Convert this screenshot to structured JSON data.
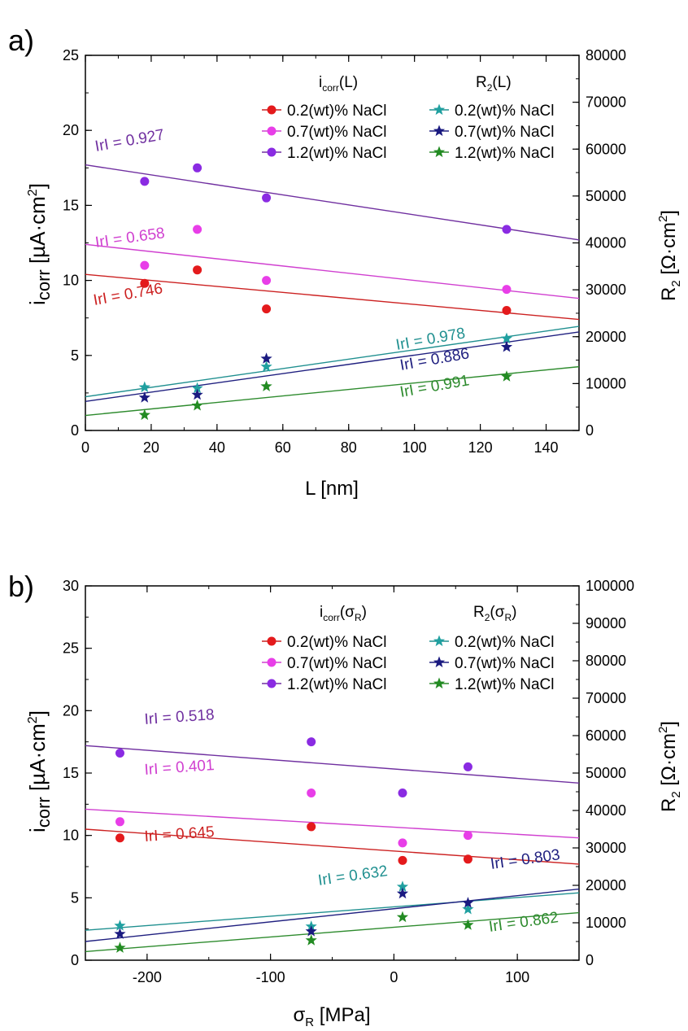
{
  "colors": {
    "red": "#e41a1c",
    "magenta": "#e83ee8",
    "violet": "#8a2be2",
    "teal": "#20a0a0",
    "navy": "#1a1a80",
    "green": "#228b22",
    "darkred": "#cc2222",
    "fitviolet": "#7030a0",
    "fitmagenta": "#d040d0",
    "fitteal": "#209090",
    "fitnavy": "#202080",
    "fitgreen": "#2e8b2e"
  },
  "chart_data": [
    {
      "type": "scatter",
      "panel_label": "a)",
      "xlabel": "L [nm]",
      "ylabel_left": "i",
      "ylabel_left_sub": "corr",
      "ylabel_left_unit": "[µA·cm",
      "ylabel_left_sup": "2",
      "ylabel_left_close": "]",
      "ylabel_right": "R",
      "ylabel_right_sub": "2",
      "ylabel_right_unit": "[Ω·cm",
      "ylabel_right_sup": "2",
      "ylabel_right_close": "]",
      "xlim": [
        0,
        150
      ],
      "ylim_left": [
        0,
        25
      ],
      "ylim_right": [
        0,
        80000
      ],
      "xticks": [
        0,
        20,
        40,
        60,
        80,
        100,
        120,
        140
      ],
      "yticks_left": [
        0,
        5,
        10,
        15,
        20,
        25
      ],
      "yticks_right": [
        0,
        10000,
        20000,
        30000,
        40000,
        50000,
        60000,
        70000,
        80000
      ],
      "legend_header_left": "i",
      "legend_header_left_sub": "corr",
      "legend_header_left_arg": "(L)",
      "legend_header_right": "R",
      "legend_header_right_sub": "2",
      "legend_header_right_arg": "(L)",
      "series": [
        {
          "name": "0.2(wt)% NaCl",
          "axis": "left",
          "marker": "circle",
          "color_key": "red",
          "x": [
            18,
            34,
            55,
            128
          ],
          "y": [
            9.8,
            10.7,
            8.1,
            8.0
          ],
          "fit": [
            10.4,
            7.4
          ],
          "r_label": "IrI = 0.746",
          "fit_color_key": "darkred"
        },
        {
          "name": "0.7(wt)% NaCl",
          "axis": "left",
          "marker": "circle",
          "color_key": "magenta",
          "x": [
            18,
            34,
            55,
            128
          ],
          "y": [
            11.0,
            13.4,
            10.0,
            9.4
          ],
          "fit": [
            12.4,
            8.8
          ],
          "r_label": "IrI = 0.658",
          "fit_color_key": "fitmagenta"
        },
        {
          "name": "1.2(wt)% NaCl",
          "axis": "left",
          "marker": "circle",
          "color_key": "violet",
          "x": [
            18,
            34,
            55,
            128
          ],
          "y": [
            16.6,
            17.5,
            15.5,
            13.4
          ],
          "fit": [
            17.7,
            12.7
          ],
          "r_label": "IrI = 0.927",
          "fit_color_key": "fitviolet"
        },
        {
          "name": "0.2(wt)% NaCl",
          "axis": "right",
          "marker": "star",
          "color_key": "teal",
          "x": [
            18,
            34,
            55,
            128
          ],
          "y": [
            9200,
            9000,
            13600,
            19600
          ],
          "fit": [
            7200,
            22200
          ],
          "r_label": "IrI = 0.978",
          "fit_color_key": "fitteal"
        },
        {
          "name": "0.7(wt)% NaCl",
          "axis": "right",
          "marker": "star",
          "color_key": "navy",
          "x": [
            18,
            34,
            55,
            128
          ],
          "y": [
            7000,
            7600,
            15300,
            17800
          ],
          "fit": [
            6200,
            21000
          ],
          "r_label": "IrI = 0.886",
          "fit_color_key": "fitnavy"
        },
        {
          "name": "1.2(wt)% NaCl",
          "axis": "right",
          "marker": "star",
          "color_key": "green",
          "x": [
            18,
            34,
            55,
            128
          ],
          "y": [
            3300,
            5300,
            9400,
            11500
          ],
          "fit": [
            3200,
            13600
          ],
          "r_label": "IrI = 0.991",
          "fit_color_key": "fitgreen"
        }
      ]
    },
    {
      "type": "scatter",
      "panel_label": "b)",
      "xlabel": "σ",
      "xlabel_sub": "R",
      "xlabel_unit": "[MPa]",
      "ylabel_left": "i",
      "ylabel_left_sub": "corr",
      "ylabel_left_unit": "[µA·cm",
      "ylabel_left_sup": "2",
      "ylabel_left_close": "]",
      "ylabel_right": "R",
      "ylabel_right_sub": "2",
      "ylabel_right_unit": "[Ω·cm",
      "ylabel_right_sup": "2",
      "ylabel_right_close": "]",
      "xlim": [
        -250,
        150
      ],
      "ylim_left": [
        0,
        30
      ],
      "ylim_right": [
        0,
        100000
      ],
      "xticks": [
        -200,
        -100,
        0,
        100
      ],
      "yticks_left": [
        0,
        5,
        10,
        15,
        20,
        25,
        30
      ],
      "yticks_right": [
        0,
        10000,
        20000,
        30000,
        40000,
        50000,
        60000,
        70000,
        80000,
        90000,
        100000
      ],
      "legend_header_left": "i",
      "legend_header_left_sub": "corr",
      "legend_header_left_arg_open": "(σ",
      "legend_header_left_arg_sub": "R",
      "legend_header_left_arg_close": ")",
      "legend_header_right": "R",
      "legend_header_right_sub": "2",
      "legend_header_right_arg_open": "(σ",
      "legend_header_right_arg_sub": "R",
      "legend_header_right_arg_close": ")",
      "series": [
        {
          "name": "0.2(wt)% NaCl",
          "axis": "left",
          "marker": "circle",
          "color_key": "red",
          "x": [
            -222,
            -67,
            7,
            60
          ],
          "y": [
            9.8,
            10.7,
            8.0,
            8.1
          ],
          "fit": [
            10.5,
            7.7
          ],
          "r_label": "IrI = 0.645",
          "fit_color_key": "darkred"
        },
        {
          "name": "0.7(wt)% NaCl",
          "axis": "left",
          "marker": "circle",
          "color_key": "magenta",
          "x": [
            -222,
            -67,
            7,
            60
          ],
          "y": [
            11.1,
            13.4,
            9.4,
            10.0
          ],
          "fit": [
            12.1,
            9.8
          ],
          "r_label": "IrI = 0.401",
          "fit_color_key": "fitmagenta"
        },
        {
          "name": "1.2(wt)% NaCl",
          "axis": "left",
          "marker": "circle",
          "color_key": "violet",
          "x": [
            -222,
            -67,
            7,
            60
          ],
          "y": [
            16.6,
            17.5,
            13.4,
            15.5
          ],
          "fit": [
            17.2,
            14.2
          ],
          "r_label": "IrI = 0.518",
          "fit_color_key": "fitviolet"
        },
        {
          "name": "0.2(wt)% NaCl",
          "axis": "right",
          "marker": "star",
          "color_key": "teal",
          "x": [
            -222,
            -67,
            7,
            60
          ],
          "y": [
            9200,
            9000,
            19600,
            13600
          ],
          "fit": [
            8000,
            18000
          ],
          "r_label": "IrI = 0.632",
          "fit_color_key": "fitteal"
        },
        {
          "name": "0.7(wt)% NaCl",
          "axis": "right",
          "marker": "star",
          "color_key": "navy",
          "x": [
            -222,
            -67,
            7,
            60
          ],
          "y": [
            7000,
            7700,
            17800,
            15300
          ],
          "fit": [
            5000,
            19000
          ],
          "r_label": "IrI = 0.803",
          "fit_color_key": "fitnavy"
        },
        {
          "name": "1.2(wt)% NaCl",
          "axis": "right",
          "marker": "star",
          "color_key": "green",
          "x": [
            -222,
            -67,
            7,
            60
          ],
          "y": [
            3300,
            5300,
            11500,
            9400
          ],
          "fit": [
            2300,
            12700
          ],
          "r_label": "IrI = 0.862",
          "fit_color_key": "fitgreen"
        }
      ]
    }
  ]
}
